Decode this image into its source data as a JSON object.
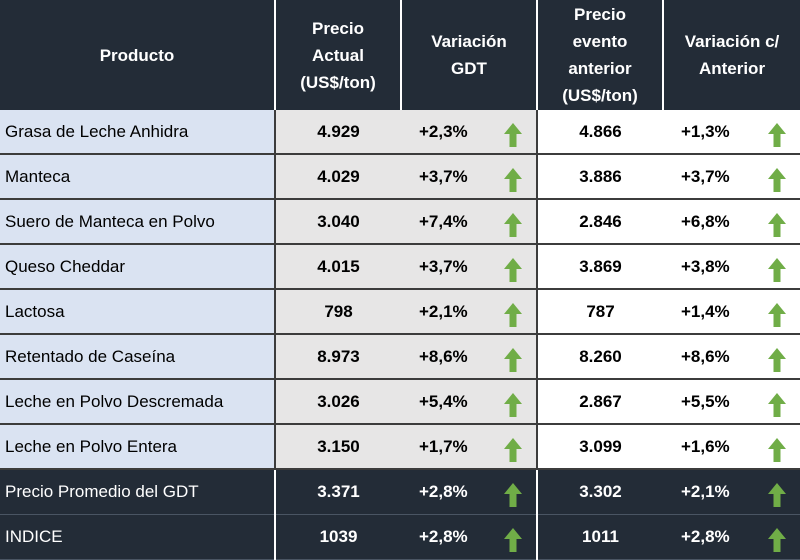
{
  "header": {
    "product": "Producto",
    "price_line1": "Precio",
    "price_line2": "Actual",
    "price_line3": "(US$/ton)",
    "var_line1": "Variación",
    "var_line2": "GDT",
    "prev_line1": "Precio",
    "prev_line2": "evento",
    "prev_line3": "anterior",
    "prev_line4": "(US$/ton)",
    "var2_line1": "Variación c/",
    "var2_line2": "Anterior"
  },
  "arrow_color": "#70ad47",
  "rows": [
    {
      "name": "Grasa de Leche Anhidra",
      "price": "4.929",
      "var": "+2,3%",
      "prev": "4.866",
      "var2": "+1,3%",
      "arrow_icon": "up-arrow-icon"
    },
    {
      "name": "Manteca",
      "price": "4.029",
      "var": "+3,7%",
      "prev": "3.886",
      "var2": "+3,7%",
      "arrow_icon": "up-arrow-icon"
    },
    {
      "name": "Suero de Manteca en Polvo",
      "price": "3.040",
      "var": "+7,4%",
      "prev": "2.846",
      "var2": "+6,8%",
      "arrow_icon": "up-arrow-icon"
    },
    {
      "name": "Queso Cheddar",
      "price": "4.015",
      "var": "+3,7%",
      "prev": "3.869",
      "var2": "+3,8%",
      "arrow_icon": "up-arrow-icon"
    },
    {
      "name": "Lactosa",
      "price": "798",
      "var": "+2,1%",
      "prev": "787",
      "var2": "+1,4%",
      "arrow_icon": "up-arrow-icon"
    },
    {
      "name": "Retentado de Caseína",
      "price": "8.973",
      "var": "+8,6%",
      "prev": "8.260",
      "var2": "+8,6%",
      "arrow_icon": "up-arrow-icon"
    },
    {
      "name": "Leche en Polvo Descremada",
      "price": "3.026",
      "var": "+5,4%",
      "prev": "2.867",
      "var2": "+5,5%",
      "arrow_icon": "up-arrow-icon"
    },
    {
      "name": "Leche en Polvo Entera",
      "price": "3.150",
      "var": "+1,7%",
      "prev": "3.099",
      "var2": "+1,6%",
      "arrow_icon": "up-arrow-icon"
    }
  ],
  "summary": [
    {
      "name": "Precio Promedio del GDT",
      "price": "3.371",
      "var": "+2,8%",
      "prev": "3.302",
      "var2": "+2,1%",
      "arrow_icon": "up-arrow-icon"
    },
    {
      "name": "INDICE",
      "price": "1039",
      "var": "+2,8%",
      "prev": "1011",
      "var2": "+2,8%",
      "arrow_icon": "up-arrow-icon"
    }
  ]
}
